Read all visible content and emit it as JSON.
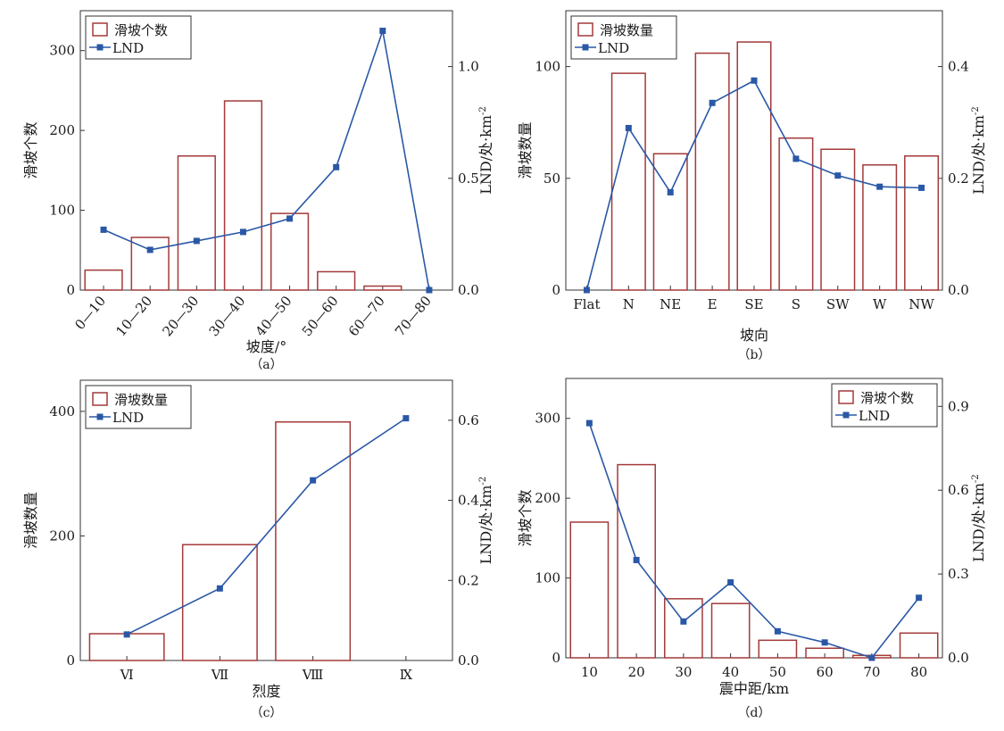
{
  "colors": {
    "bar_stroke": "#a33a3a",
    "line": "#2a58a6",
    "axis": "#333333"
  },
  "chart_data": [
    {
      "type": "bar",
      "caption": "（a）",
      "xlabel": "坡度/°",
      "ylabel": "滑坡个数",
      "y2label_main": "LND/处·km",
      "y2label_sup": "-2",
      "categories": [
        "0—10",
        "10—20",
        "20—30",
        "30—40",
        "40—50",
        "50—60",
        "60—70",
        "70—80"
      ],
      "yticks": [
        "0",
        "100",
        "200",
        "300"
      ],
      "y2ticks": [
        "0.0",
        "0.5",
        "1.0"
      ],
      "ylim": [
        0,
        350
      ],
      "y2lim": [
        0,
        1.25
      ],
      "legend_placement": "top-left",
      "series": [
        {
          "name": "滑坡个数",
          "kind": "bar",
          "axis": "left",
          "values": [
            25,
            66,
            168,
            237,
            96,
            23,
            5,
            0
          ]
        },
        {
          "name": "LND",
          "kind": "line",
          "axis": "right",
          "values": [
            0.27,
            0.18,
            0.22,
            0.26,
            0.32,
            0.55,
            1.16,
            0.0
          ]
        }
      ]
    },
    {
      "type": "bar",
      "caption": "（b）",
      "xlabel": "坡向",
      "ylabel": "滑坡数量",
      "y2label_main": "LND/处·km",
      "y2label_sup": "-2",
      "categories": [
        "Flat",
        "N",
        "NE",
        "E",
        "SE",
        "S",
        "SW",
        "W",
        "NW"
      ],
      "yticks": [
        "0",
        "50",
        "100"
      ],
      "y2ticks": [
        "0.0",
        "0.2",
        "0.4"
      ],
      "ylim": [
        0,
        125
      ],
      "y2lim": [
        0,
        0.5
      ],
      "legend_placement": "top-left",
      "series": [
        {
          "name": "滑坡数量",
          "kind": "bar",
          "axis": "left",
          "values": [
            0,
            97,
            61,
            106,
            111,
            68,
            63,
            56,
            60
          ]
        },
        {
          "name": "LND",
          "kind": "line",
          "axis": "right",
          "values": [
            0.0,
            0.29,
            0.175,
            0.335,
            0.375,
            0.235,
            0.205,
            0.185,
            0.183
          ]
        }
      ]
    },
    {
      "type": "bar",
      "caption": "（c）",
      "xlabel": "烈度",
      "ylabel": "滑坡数量",
      "y2label_main": "LND/处·km",
      "y2label_sup": "-2",
      "categories": [
        "Ⅵ",
        "Ⅶ",
        "Ⅷ",
        "Ⅸ"
      ],
      "yticks": [
        "0",
        "200",
        "400"
      ],
      "y2ticks": [
        "0.0",
        "0.2",
        "0.4",
        "0.6"
      ],
      "ylim": [
        0,
        450
      ],
      "y2lim": [
        0,
        0.7
      ],
      "legend_placement": "top-left",
      "series": [
        {
          "name": "滑坡数量",
          "kind": "bar",
          "axis": "left",
          "values": [
            43,
            186,
            383,
            0
          ]
        },
        {
          "name": "LND",
          "kind": "line",
          "axis": "right",
          "values": [
            0.065,
            0.18,
            0.45,
            0.605
          ]
        }
      ]
    },
    {
      "type": "bar",
      "caption": "（d）",
      "xlabel": "震中距/km",
      "ylabel": "滑坡个数",
      "y2label_main": "LND/处·km",
      "y2label_sup": "-2",
      "categories": [
        "10",
        "20",
        "30",
        "40",
        "50",
        "60",
        "70",
        "80"
      ],
      "yticks": [
        "0",
        "100",
        "200",
        "300"
      ],
      "y2ticks": [
        "0.0",
        "0.3",
        "0.6",
        "0.9"
      ],
      "ylim": [
        0,
        350
      ],
      "y2lim": [
        0,
        1.0
      ],
      "legend_placement": "top-right",
      "series": [
        {
          "name": "滑坡个数",
          "kind": "bar",
          "axis": "left",
          "values": [
            170,
            242,
            74,
            68,
            22,
            12,
            3,
            31
          ]
        },
        {
          "name": "LND",
          "kind": "line",
          "axis": "right",
          "values": [
            0.84,
            0.35,
            0.13,
            0.27,
            0.095,
            0.055,
            0.0,
            0.215
          ]
        }
      ]
    }
  ]
}
